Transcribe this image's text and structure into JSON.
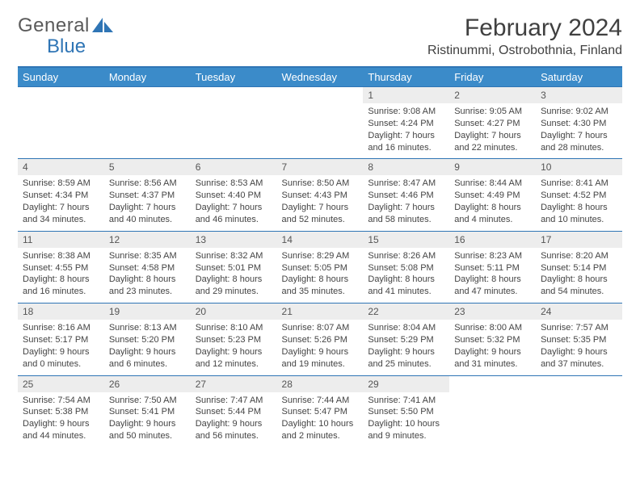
{
  "logo": {
    "text1": "General",
    "text2": "Blue"
  },
  "title": "February 2024",
  "location": "Ristinummi, Ostrobothnia, Finland",
  "colors": {
    "header_bg": "#3b8bc9",
    "border": "#2f75b5",
    "daynum_bg": "#ededed"
  },
  "weekdays": [
    "Sunday",
    "Monday",
    "Tuesday",
    "Wednesday",
    "Thursday",
    "Friday",
    "Saturday"
  ],
  "weeks": [
    [
      null,
      null,
      null,
      null,
      {
        "n": "1",
        "sr": "9:08 AM",
        "ss": "4:24 PM",
        "dl": "7 hours and 16 minutes."
      },
      {
        "n": "2",
        "sr": "9:05 AM",
        "ss": "4:27 PM",
        "dl": "7 hours and 22 minutes."
      },
      {
        "n": "3",
        "sr": "9:02 AM",
        "ss": "4:30 PM",
        "dl": "7 hours and 28 minutes."
      }
    ],
    [
      {
        "n": "4",
        "sr": "8:59 AM",
        "ss": "4:34 PM",
        "dl": "7 hours and 34 minutes."
      },
      {
        "n": "5",
        "sr": "8:56 AM",
        "ss": "4:37 PM",
        "dl": "7 hours and 40 minutes."
      },
      {
        "n": "6",
        "sr": "8:53 AM",
        "ss": "4:40 PM",
        "dl": "7 hours and 46 minutes."
      },
      {
        "n": "7",
        "sr": "8:50 AM",
        "ss": "4:43 PM",
        "dl": "7 hours and 52 minutes."
      },
      {
        "n": "8",
        "sr": "8:47 AM",
        "ss": "4:46 PM",
        "dl": "7 hours and 58 minutes."
      },
      {
        "n": "9",
        "sr": "8:44 AM",
        "ss": "4:49 PM",
        "dl": "8 hours and 4 minutes."
      },
      {
        "n": "10",
        "sr": "8:41 AM",
        "ss": "4:52 PM",
        "dl": "8 hours and 10 minutes."
      }
    ],
    [
      {
        "n": "11",
        "sr": "8:38 AM",
        "ss": "4:55 PM",
        "dl": "8 hours and 16 minutes."
      },
      {
        "n": "12",
        "sr": "8:35 AM",
        "ss": "4:58 PM",
        "dl": "8 hours and 23 minutes."
      },
      {
        "n": "13",
        "sr": "8:32 AM",
        "ss": "5:01 PM",
        "dl": "8 hours and 29 minutes."
      },
      {
        "n": "14",
        "sr": "8:29 AM",
        "ss": "5:05 PM",
        "dl": "8 hours and 35 minutes."
      },
      {
        "n": "15",
        "sr": "8:26 AM",
        "ss": "5:08 PM",
        "dl": "8 hours and 41 minutes."
      },
      {
        "n": "16",
        "sr": "8:23 AM",
        "ss": "5:11 PM",
        "dl": "8 hours and 47 minutes."
      },
      {
        "n": "17",
        "sr": "8:20 AM",
        "ss": "5:14 PM",
        "dl": "8 hours and 54 minutes."
      }
    ],
    [
      {
        "n": "18",
        "sr": "8:16 AM",
        "ss": "5:17 PM",
        "dl": "9 hours and 0 minutes."
      },
      {
        "n": "19",
        "sr": "8:13 AM",
        "ss": "5:20 PM",
        "dl": "9 hours and 6 minutes."
      },
      {
        "n": "20",
        "sr": "8:10 AM",
        "ss": "5:23 PM",
        "dl": "9 hours and 12 minutes."
      },
      {
        "n": "21",
        "sr": "8:07 AM",
        "ss": "5:26 PM",
        "dl": "9 hours and 19 minutes."
      },
      {
        "n": "22",
        "sr": "8:04 AM",
        "ss": "5:29 PM",
        "dl": "9 hours and 25 minutes."
      },
      {
        "n": "23",
        "sr": "8:00 AM",
        "ss": "5:32 PM",
        "dl": "9 hours and 31 minutes."
      },
      {
        "n": "24",
        "sr": "7:57 AM",
        "ss": "5:35 PM",
        "dl": "9 hours and 37 minutes."
      }
    ],
    [
      {
        "n": "25",
        "sr": "7:54 AM",
        "ss": "5:38 PM",
        "dl": "9 hours and 44 minutes."
      },
      {
        "n": "26",
        "sr": "7:50 AM",
        "ss": "5:41 PM",
        "dl": "9 hours and 50 minutes."
      },
      {
        "n": "27",
        "sr": "7:47 AM",
        "ss": "5:44 PM",
        "dl": "9 hours and 56 minutes."
      },
      {
        "n": "28",
        "sr": "7:44 AM",
        "ss": "5:47 PM",
        "dl": "10 hours and 2 minutes."
      },
      {
        "n": "29",
        "sr": "7:41 AM",
        "ss": "5:50 PM",
        "dl": "10 hours and 9 minutes."
      },
      null,
      null
    ]
  ],
  "labels": {
    "sunrise": "Sunrise: ",
    "sunset": "Sunset: ",
    "daylight": "Daylight: "
  }
}
